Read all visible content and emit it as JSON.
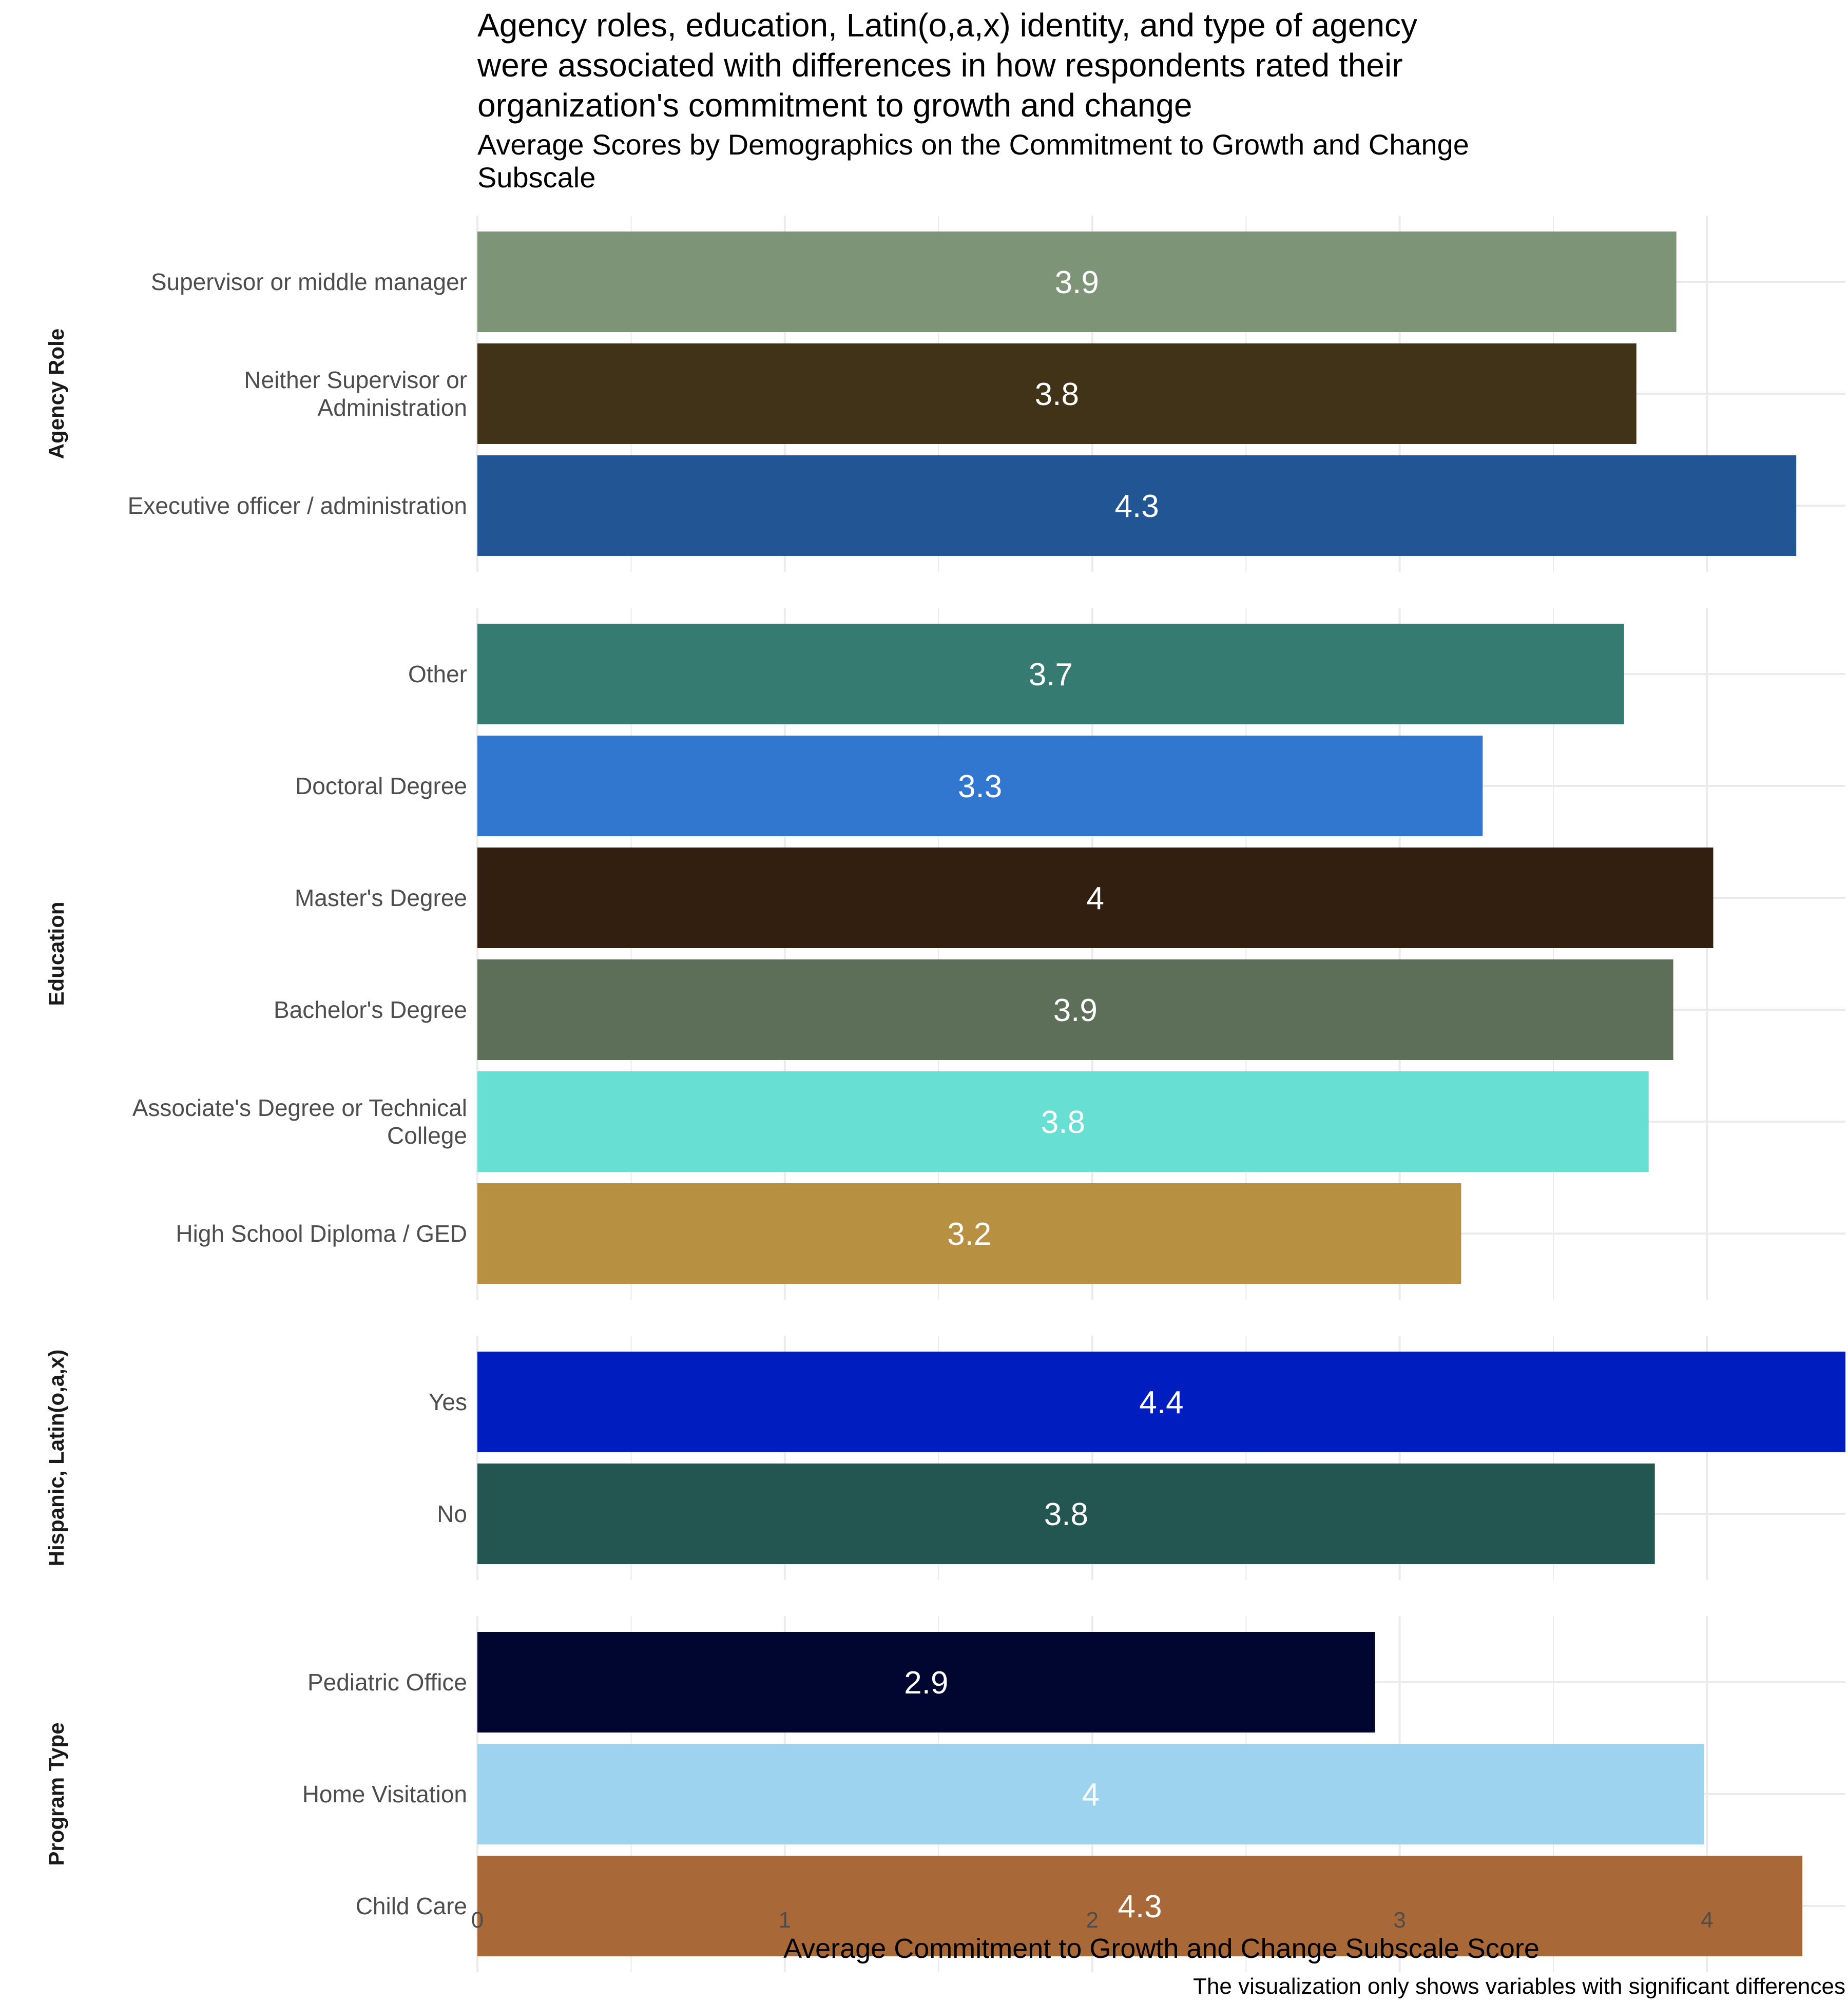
{
  "chart_data": {
    "type": "bar",
    "orientation": "horizontal",
    "title": "Agency roles, education, Latin(o,a,x) identity, and type of agency were associated with differences in how respondents rated their organization's commitment to growth and change",
    "title_lines": [
      "Agency roles, education, Latin(o,a,x) identity, and type of agency",
      "were associated with differences in how respondents rated their",
      "organization's commitment to growth and change"
    ],
    "subtitle_lines": [
      "Average Scores by Demographics on the Commitment to Growth and Change",
      "Subscale"
    ],
    "xlabel": "Average Commitment to Growth and Change Subscale Score",
    "ylabel": "",
    "caption": "The visualization only shows variables with significant differences",
    "xlim": [
      0,
      4.45
    ],
    "xticks": [
      0,
      1,
      2,
      3,
      4
    ],
    "grid": true,
    "legend": "none",
    "facets": [
      {
        "name": "Agency Role",
        "bars": [
          {
            "label": [
              "Supervisor or middle manager"
            ],
            "value": 3.9,
            "display": "3.9",
            "color": "#7D9476"
          },
          {
            "label": [
              "Neither Supervisor or",
              "Administration"
            ],
            "value": 3.77,
            "display": "3.8",
            "color": "#403318"
          },
          {
            "label": [
              "Executive officer / administration"
            ],
            "value": 4.29,
            "display": "4.3",
            "color": "#215593"
          }
        ]
      },
      {
        "name": "Education",
        "bars": [
          {
            "label": [
              "Other"
            ],
            "value": 3.73,
            "display": "3.7",
            "color": "#367B72"
          },
          {
            "label": [
              "Doctoral Degree"
            ],
            "value": 3.27,
            "display": "3.3",
            "color": "#3277CF"
          },
          {
            "label": [
              "Master's Degree"
            ],
            "value": 4.02,
            "display": "4",
            "color": "#331F10"
          },
          {
            "label": [
              "Bachelor's Degree"
            ],
            "value": 3.89,
            "display": "3.9",
            "color": "#5D6F58"
          },
          {
            "label": [
              "Associate's Degree or Technical",
              "College"
            ],
            "value": 3.81,
            "display": "3.8",
            "color": "#68DFD3"
          },
          {
            "label": [
              "High School Diploma / GED"
            ],
            "value": 3.2,
            "display": "3.2",
            "color": "#B89042"
          }
        ]
      },
      {
        "name": "Hispanic, Latin(o,a,x)",
        "bars": [
          {
            "label": [
              "Yes"
            ],
            "value": 4.45,
            "display": "4.4",
            "color": "#001EC0"
          },
          {
            "label": [
              "No"
            ],
            "value": 3.83,
            "display": "3.8",
            "color": "#245651"
          }
        ]
      },
      {
        "name": "Program Type",
        "bars": [
          {
            "label": [
              "Pediatric Office"
            ],
            "value": 2.92,
            "display": "2.9",
            "color": "#000630"
          },
          {
            "label": [
              "Home Visitation"
            ],
            "value": 3.99,
            "display": "4",
            "color": "#9DD3EE"
          },
          {
            "label": [
              "Child Care"
            ],
            "value": 4.31,
            "display": "4.3",
            "color": "#A86838"
          }
        ]
      }
    ]
  }
}
